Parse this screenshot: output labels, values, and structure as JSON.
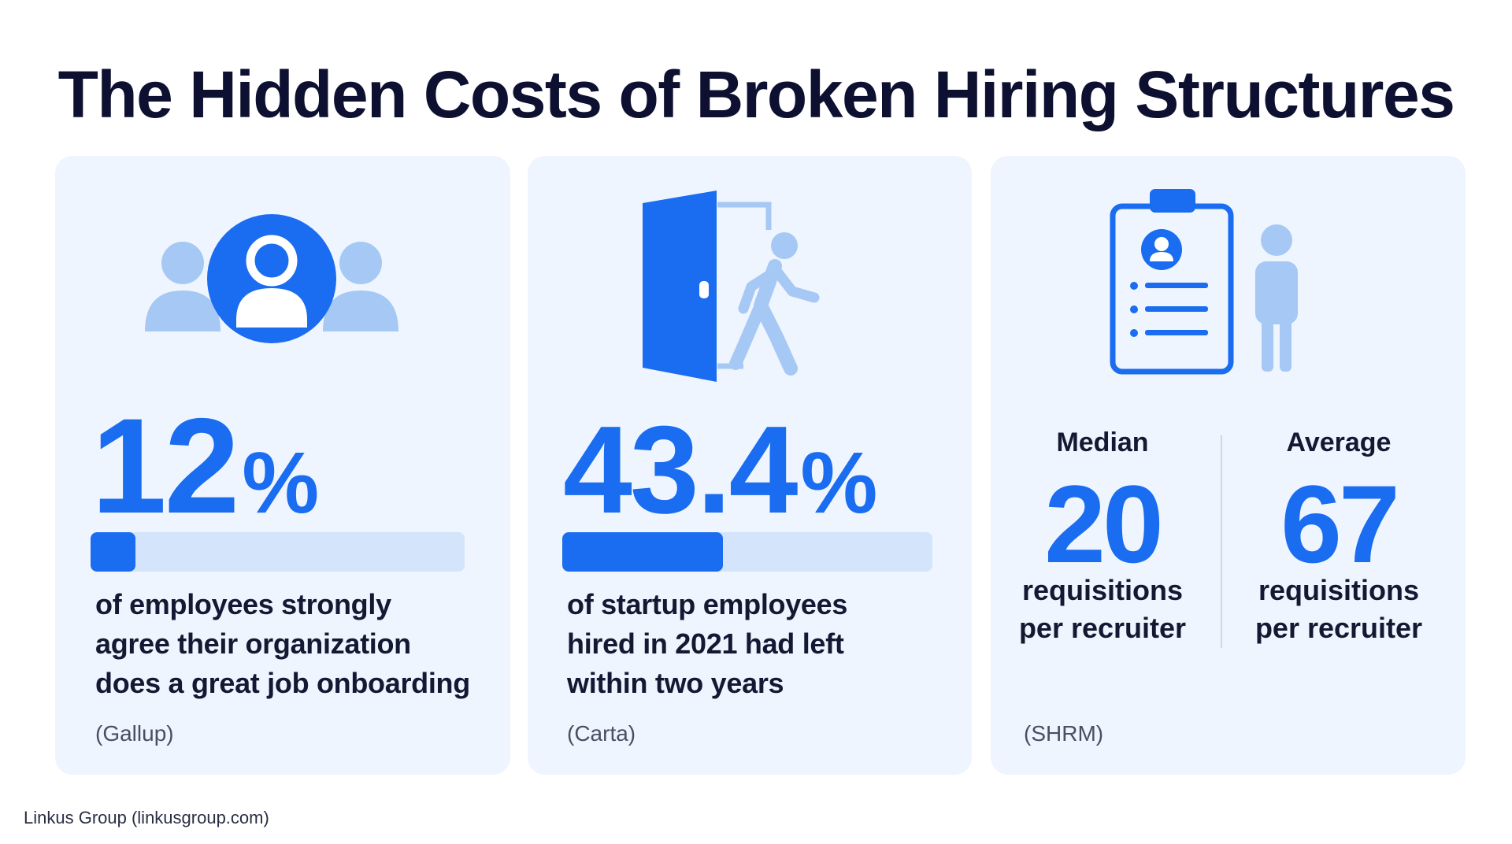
{
  "title": "The Hidden Costs of Broken Hiring Structures",
  "colors": {
    "accent": "#1a6cf0",
    "accent_light": "#a6c8f4",
    "card_bg": "#eef5fe",
    "bar_bg": "#d3e4fb"
  },
  "cards": [
    {
      "icon": "people-group-icon",
      "value": "12",
      "unit": "%",
      "bar_fraction": 0.12,
      "description_lines": [
        "of employees strongly",
        "agree their organization",
        "does a great job onboarding"
      ],
      "source": "(Gallup)"
    },
    {
      "icon": "exit-door-icon",
      "value": "43.4",
      "unit": "%",
      "bar_fraction": 0.434,
      "description_lines": [
        "of startup employees",
        "hired in 2021 had left",
        "within two years"
      ],
      "source": "(Carta)"
    },
    {
      "icon": "clipboard-candidate-icon",
      "stats": [
        {
          "label": "Median",
          "value": "20",
          "unit_lines": [
            "requisitions",
            "per recruiter"
          ]
        },
        {
          "label": "Average",
          "value": "67",
          "unit_lines": [
            "requisitions",
            "per recruiter"
          ]
        }
      ],
      "source": "(SHRM)"
    }
  ],
  "footer": "Linkus Group (linkusgroup.com)"
}
